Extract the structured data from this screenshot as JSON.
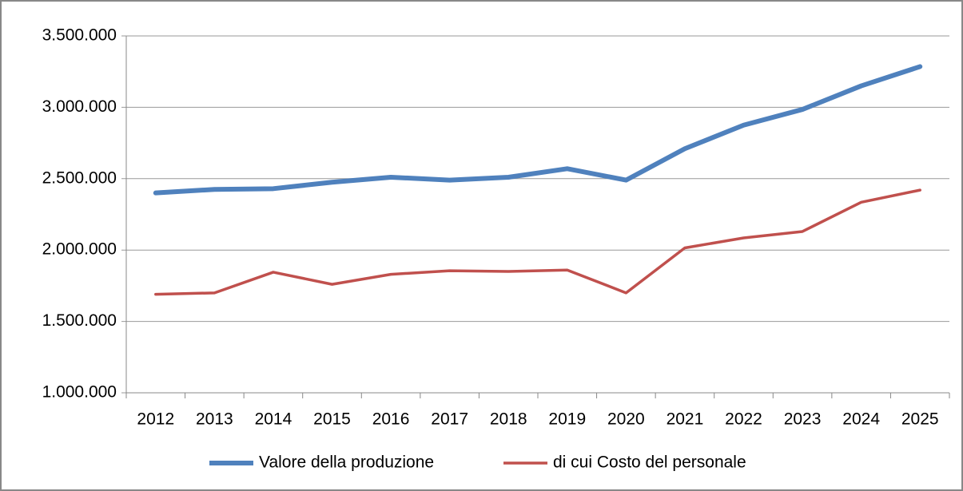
{
  "chart_data": {
    "type": "line",
    "categories": [
      "2012",
      "2013",
      "2014",
      "2015",
      "2016",
      "2017",
      "2018",
      "2019",
      "2020",
      "2021",
      "2022",
      "2023",
      "2024",
      "2025"
    ],
    "series": [
      {
        "name": "Valore della produzione",
        "color": "#4f81bd",
        "values": [
          2400000,
          2425000,
          2430000,
          2475000,
          2510000,
          2490000,
          2510000,
          2570000,
          2490000,
          2710000,
          2875000,
          2985000,
          3150000,
          3285000
        ]
      },
      {
        "name": "di cui Costo del personale",
        "color": "#c0504d",
        "values": [
          1690000,
          1700000,
          1845000,
          1760000,
          1830000,
          1855000,
          1850000,
          1860000,
          1700000,
          2015000,
          2085000,
          2130000,
          2335000,
          2420000
        ]
      }
    ],
    "ylim": [
      1000000,
      3500000
    ],
    "yticks": [
      {
        "value": 1000000,
        "label": "1.000.000"
      },
      {
        "value": 1500000,
        "label": "1.500.000"
      },
      {
        "value": 2000000,
        "label": "2.000.000"
      },
      {
        "value": 2500000,
        "label": "2.500.000"
      },
      {
        "value": 3000000,
        "label": "3.000.000"
      },
      {
        "value": 3500000,
        "label": "3.500.000"
      }
    ],
    "grid": true,
    "legend": "bottom"
  }
}
